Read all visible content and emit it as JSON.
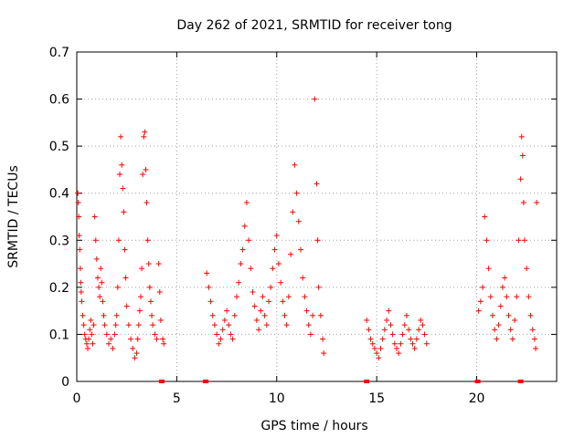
{
  "chart_data": {
    "type": "scatter",
    "title": "Day 262 of 2021, SRMTID for receiver tong",
    "xlabel": "GPS time / hours",
    "ylabel": "SRMTID / TECUs",
    "xlim": [
      0,
      24
    ],
    "ylim": [
      0,
      0.7
    ],
    "xticks": [
      0,
      5,
      10,
      15,
      20
    ],
    "xtick_labels": [
      "0",
      "5",
      "10",
      "15",
      "20"
    ],
    "yticks": [
      0,
      0.1,
      0.2,
      0.3,
      0.4,
      0.5,
      0.6,
      0.7
    ],
    "ytick_labels": [
      "0",
      "0.1",
      "0.2",
      "0.3",
      "0.4",
      "0.5",
      "0.6",
      "0.7"
    ],
    "grid": true,
    "marker": "+",
    "color": "#ff0000",
    "series": [
      {
        "name": "SRMTID",
        "points": [
          [
            0.05,
            0.4
          ],
          [
            0.08,
            0.38
          ],
          [
            0.1,
            0.35
          ],
          [
            0.12,
            0.31
          ],
          [
            0.15,
            0.28
          ],
          [
            0.18,
            0.24
          ],
          [
            0.2,
            0.21
          ],
          [
            0.22,
            0.19
          ],
          [
            0.25,
            0.17
          ],
          [
            0.3,
            0.14
          ],
          [
            0.35,
            0.12
          ],
          [
            0.4,
            0.1
          ],
          [
            0.45,
            0.09
          ],
          [
            0.5,
            0.08
          ],
          [
            0.55,
            0.07
          ],
          [
            0.6,
            0.09
          ],
          [
            0.65,
            0.11
          ],
          [
            0.7,
            0.13
          ],
          [
            0.75,
            0.1
          ],
          [
            0.8,
            0.08
          ],
          [
            0.85,
            0.12
          ],
          [
            0.9,
            0.35
          ],
          [
            0.95,
            0.3
          ],
          [
            1.0,
            0.26
          ],
          [
            1.05,
            0.22
          ],
          [
            1.1,
            0.2
          ],
          [
            1.15,
            0.18
          ],
          [
            1.2,
            0.24
          ],
          [
            1.25,
            0.21
          ],
          [
            1.3,
            0.17
          ],
          [
            1.35,
            0.14
          ],
          [
            1.4,
            0.12
          ],
          [
            1.5,
            0.1
          ],
          [
            1.6,
            0.08
          ],
          [
            1.7,
            0.09
          ],
          [
            1.8,
            0.07
          ],
          [
            1.9,
            0.1
          ],
          [
            1.95,
            0.12
          ],
          [
            2.0,
            0.14
          ],
          [
            2.05,
            0.2
          ],
          [
            2.1,
            0.3
          ],
          [
            2.15,
            0.44
          ],
          [
            2.2,
            0.52
          ],
          [
            2.25,
            0.46
          ],
          [
            2.3,
            0.41
          ],
          [
            2.35,
            0.36
          ],
          [
            2.4,
            0.28
          ],
          [
            2.45,
            0.22
          ],
          [
            2.5,
            0.16
          ],
          [
            2.6,
            0.12
          ],
          [
            2.7,
            0.09
          ],
          [
            2.8,
            0.07
          ],
          [
            2.9,
            0.05
          ],
          [
            3.0,
            0.06
          ],
          [
            3.05,
            0.09
          ],
          [
            3.1,
            0.12
          ],
          [
            3.15,
            0.15
          ],
          [
            3.2,
            0.18
          ],
          [
            3.25,
            0.24
          ],
          [
            3.3,
            0.44
          ],
          [
            3.35,
            0.52
          ],
          [
            3.4,
            0.53
          ],
          [
            3.45,
            0.45
          ],
          [
            3.5,
            0.38
          ],
          [
            3.55,
            0.3
          ],
          [
            3.6,
            0.25
          ],
          [
            3.65,
            0.2
          ],
          [
            3.7,
            0.17
          ],
          [
            3.75,
            0.14
          ],
          [
            3.8,
            0.12
          ],
          [
            3.9,
            0.1
          ],
          [
            4.0,
            0.09
          ],
          [
            4.1,
            0.25
          ],
          [
            4.15,
            0.19
          ],
          [
            4.2,
            0.13
          ],
          [
            4.3,
            0.09
          ],
          [
            4.35,
            0.08
          ],
          [
            6.5,
            0.23
          ],
          [
            6.6,
            0.2
          ],
          [
            6.7,
            0.17
          ],
          [
            6.8,
            0.14
          ],
          [
            6.9,
            0.12
          ],
          [
            7.0,
            0.1
          ],
          [
            7.1,
            0.08
          ],
          [
            7.2,
            0.09
          ],
          [
            7.3,
            0.11
          ],
          [
            7.4,
            0.13
          ],
          [
            7.5,
            0.15
          ],
          [
            7.6,
            0.12
          ],
          [
            7.7,
            0.1
          ],
          [
            7.8,
            0.09
          ],
          [
            7.9,
            0.14
          ],
          [
            8.0,
            0.18
          ],
          [
            8.1,
            0.21
          ],
          [
            8.2,
            0.25
          ],
          [
            8.3,
            0.28
          ],
          [
            8.4,
            0.33
          ],
          [
            8.5,
            0.38
          ],
          [
            8.6,
            0.3
          ],
          [
            8.7,
            0.24
          ],
          [
            8.8,
            0.19
          ],
          [
            8.9,
            0.16
          ],
          [
            9.0,
            0.13
          ],
          [
            9.1,
            0.11
          ],
          [
            9.2,
            0.15
          ],
          [
            9.3,
            0.18
          ],
          [
            9.4,
            0.14
          ],
          [
            9.5,
            0.12
          ],
          [
            9.6,
            0.17
          ],
          [
            9.7,
            0.2
          ],
          [
            9.8,
            0.24
          ],
          [
            9.9,
            0.28
          ],
          [
            10.0,
            0.31
          ],
          [
            10.1,
            0.25
          ],
          [
            10.2,
            0.21
          ],
          [
            10.3,
            0.17
          ],
          [
            10.4,
            0.14
          ],
          [
            10.5,
            0.12
          ],
          [
            10.6,
            0.18
          ],
          [
            10.7,
            0.27
          ],
          [
            10.8,
            0.36
          ],
          [
            10.9,
            0.46
          ],
          [
            11.0,
            0.4
          ],
          [
            11.1,
            0.34
          ],
          [
            11.2,
            0.28
          ],
          [
            11.3,
            0.22
          ],
          [
            11.4,
            0.18
          ],
          [
            11.5,
            0.15
          ],
          [
            11.6,
            0.12
          ],
          [
            11.7,
            0.1
          ],
          [
            11.8,
            0.14
          ],
          [
            11.9,
            0.6
          ],
          [
            12.0,
            0.42
          ],
          [
            12.05,
            0.3
          ],
          [
            12.1,
            0.2
          ],
          [
            12.2,
            0.14
          ],
          [
            12.3,
            0.09
          ],
          [
            12.35,
            0.06
          ],
          [
            14.5,
            0.13
          ],
          [
            14.6,
            0.11
          ],
          [
            14.7,
            0.09
          ],
          [
            14.8,
            0.08
          ],
          [
            14.9,
            0.07
          ],
          [
            15.0,
            0.06
          ],
          [
            15.1,
            0.05
          ],
          [
            15.2,
            0.07
          ],
          [
            15.3,
            0.09
          ],
          [
            15.4,
            0.11
          ],
          [
            15.5,
            0.13
          ],
          [
            15.6,
            0.15
          ],
          [
            15.7,
            0.12
          ],
          [
            15.8,
            0.1
          ],
          [
            15.9,
            0.08
          ],
          [
            16.0,
            0.07
          ],
          [
            16.1,
            0.06
          ],
          [
            16.2,
            0.08
          ],
          [
            16.3,
            0.1
          ],
          [
            16.4,
            0.12
          ],
          [
            16.5,
            0.14
          ],
          [
            16.6,
            0.11
          ],
          [
            16.7,
            0.09
          ],
          [
            16.8,
            0.08
          ],
          [
            16.9,
            0.07
          ],
          [
            17.0,
            0.09
          ],
          [
            17.1,
            0.11
          ],
          [
            17.2,
            0.13
          ],
          [
            17.3,
            0.12
          ],
          [
            17.4,
            0.1
          ],
          [
            17.5,
            0.08
          ],
          [
            20.1,
            0.15
          ],
          [
            20.2,
            0.17
          ],
          [
            20.3,
            0.2
          ],
          [
            20.4,
            0.35
          ],
          [
            20.5,
            0.3
          ],
          [
            20.6,
            0.24
          ],
          [
            20.7,
            0.18
          ],
          [
            20.8,
            0.14
          ],
          [
            20.9,
            0.11
          ],
          [
            21.0,
            0.09
          ],
          [
            21.1,
            0.12
          ],
          [
            21.2,
            0.16
          ],
          [
            21.3,
            0.2
          ],
          [
            21.4,
            0.22
          ],
          [
            21.5,
            0.18
          ],
          [
            21.6,
            0.14
          ],
          [
            21.7,
            0.11
          ],
          [
            21.8,
            0.09
          ],
          [
            21.9,
            0.13
          ],
          [
            22.0,
            0.18
          ],
          [
            22.1,
            0.3
          ],
          [
            22.2,
            0.43
          ],
          [
            22.25,
            0.52
          ],
          [
            22.3,
            0.48
          ],
          [
            22.35,
            0.38
          ],
          [
            22.4,
            0.3
          ],
          [
            22.5,
            0.24
          ],
          [
            22.6,
            0.18
          ],
          [
            22.7,
            0.14
          ],
          [
            22.8,
            0.11
          ],
          [
            22.9,
            0.09
          ],
          [
            22.95,
            0.07
          ],
          [
            23.0,
            0.38
          ]
        ]
      }
    ],
    "zero_markers_x": [
      4.25,
      6.45,
      14.5,
      20.05,
      22.2
    ]
  }
}
